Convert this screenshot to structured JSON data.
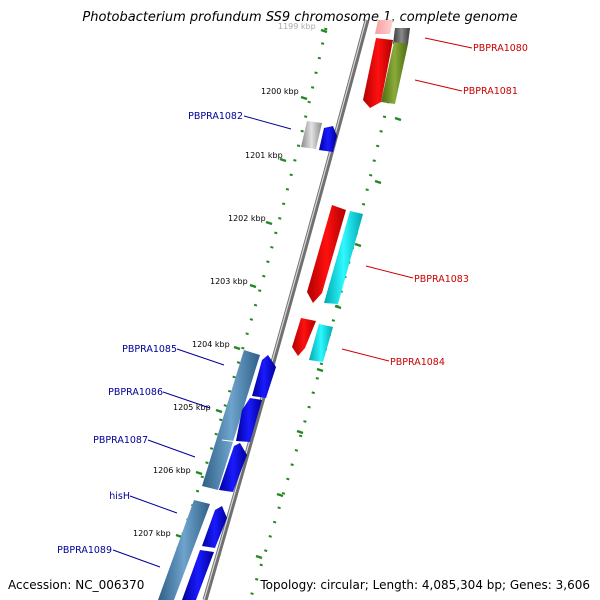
{
  "title": "Photobacterium profundum SS9 chromosome 1, complete genome",
  "footer": {
    "accession": "Accession: NC_006370",
    "stats": "Topology: circular; Length: 4,085,304 bp; Genes: 3,606"
  },
  "ticks": [
    "1199 kbp",
    "1200 kbp",
    "1201 kbp",
    "1202 kbp",
    "1203 kbp",
    "1204 kbp",
    "1205 kbp",
    "1206 kbp",
    "1207 kbp"
  ],
  "genes_right": [
    "PBPRA1080",
    "PBPRA1081",
    "PBPRA1083",
    "PBPRA1084"
  ],
  "genes_left": [
    "PBPRA1082",
    "PBPRA1085",
    "PBPRA1086",
    "PBPRA1087",
    "hisH",
    "PBPRA1089"
  ],
  "colors": {
    "right_label": "#cc0000",
    "left_label": "#000099",
    "backbone": "#808080",
    "dotted_ring": "#228822",
    "cog_red": "#ff0000",
    "cog_cyan": "#00e5ee",
    "cog_olive": "#6b8e23",
    "cog_steel": "#4682b4",
    "cog_blue": "#0000ff",
    "cog_gray": "#c0c0c0"
  }
}
